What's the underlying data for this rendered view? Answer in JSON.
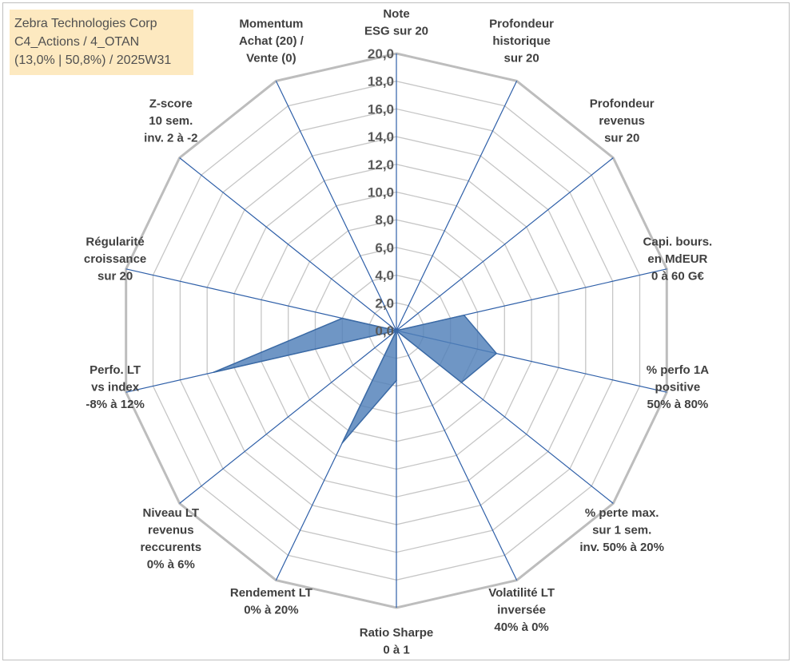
{
  "info_box": {
    "line1": "Zebra Technologies Corp",
    "line2": "C4_Actions / 4_OTAN",
    "line3": "(13,0% | 50,8%) / 2025W31"
  },
  "chart_data": {
    "type": "radar",
    "title": "",
    "range": [
      0,
      20
    ],
    "tick_step": 2,
    "tick_labels": [
      "0,0",
      "2,0",
      "4,0",
      "6,0",
      "8,0",
      "10,0",
      "12,0",
      "14,0",
      "16,0",
      "18,0",
      "20,0"
    ],
    "axes": [
      {
        "label": [
          "Note",
          "ESG sur 20"
        ]
      },
      {
        "label": [
          "Profondeur",
          "historique",
          "sur 20"
        ]
      },
      {
        "label": [
          "Profondeur",
          "revenus",
          "sur 20"
        ]
      },
      {
        "label": [
          "Capi. bours.",
          "en MdEUR",
          "0 à 60 G€"
        ]
      },
      {
        "label": [
          "% perfo 1A",
          "positive",
          "50% à 80%"
        ]
      },
      {
        "label": [
          "% perte max.",
          "sur 1 sem.",
          "inv. 50% à 20%"
        ]
      },
      {
        "label": [
          "Volatilité LT",
          "inversée",
          "40% à 0%"
        ]
      },
      {
        "label": [
          "Ratio Sharpe",
          "0 à 1"
        ]
      },
      {
        "label": [
          "Rendement LT",
          "0% à 20%"
        ]
      },
      {
        "label": [
          "Niveau LT",
          "revenus",
          "reccurents",
          "0% à 6%"
        ]
      },
      {
        "label": [
          "Perfo. LT",
          "vs index",
          "-8% à 12%"
        ]
      },
      {
        "label": [
          "Régularité",
          "croissance",
          "sur 20"
        ]
      },
      {
        "label": [
          "Z-score",
          "10 sem.",
          "inv. 2 à -2"
        ]
      },
      {
        "label": [
          "Momentum",
          "Achat (20) /",
          "Vente (0)"
        ]
      }
    ],
    "series": [
      {
        "values": [
          0,
          0,
          0,
          5.0,
          7.4,
          6.0,
          0,
          3.6,
          9.0,
          0,
          13.5,
          4.0,
          0,
          0
        ]
      }
    ],
    "colors": {
      "fill": "#4f7fb8",
      "stroke": "#3b6aa5",
      "spoke": "#2e5fa8",
      "grid": "#c6c6c6",
      "outer": "#bdbdbd"
    },
    "grid": true,
    "legend": "none"
  }
}
